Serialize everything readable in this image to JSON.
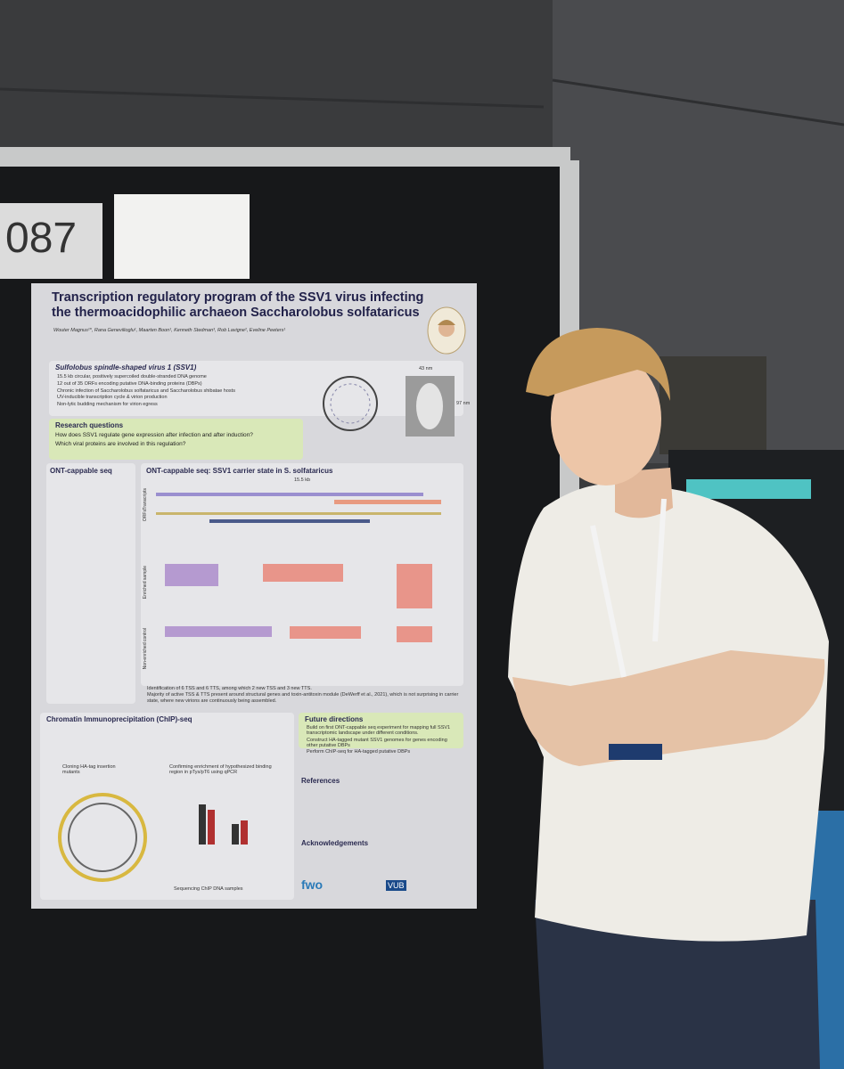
{
  "board_number": "087",
  "poster": {
    "title_line1": "Transcription regulatory program of the SSV1 virus infecting",
    "title_line2": "the thermoacidophilic archaeon Saccharolobus solfataricus",
    "authors": "Wouter Magnus¹*, Rana Genevilioglu¹, Maarten Boon¹, Kenneth Stedman³, Rob Lavigne², Eveline Peeters¹",
    "ssv1": {
      "heading": "Sulfolobus spindle-shaped virus 1 (SSV1)",
      "bullets": [
        "15.5 kb circular, positively supercoiled double-stranded DNA genome",
        "12 out of 35 ORFs encoding putative DNA-binding proteins (DBPs)",
        "Chronic infection of Saccharolobus solfataricus and Saccharolobus shibatae hosts",
        "UV-inducible transcription cycle & virion production",
        "Non-lytic budding mechanism for virion egress"
      ],
      "width_label": "43 nm",
      "height_label": "97 nm"
    },
    "research_questions": {
      "heading": "Research questions",
      "items": [
        "How does SSV1 regulate gene expression after infection and after induction?",
        "Which viral proteins are involved in this regulation?"
      ]
    },
    "ont": {
      "left_heading": "ONT-cappable seq",
      "right_heading": "ONT-cappable seq: SSV1 carrier state in S. solfataricus",
      "genome_label": "15.5 kb",
      "track_labels": [
        "Transcripts",
        "ORFs",
        "Enriched sample",
        "Non-enriched control"
      ],
      "findings": [
        "Identification of 6 TSS and 6 TTS, among which 2 new TSS and 3 new TTS.",
        "Majority of active TSS & TTS present around structural genes and toxin-antitoxin module (DeWerff et al., 2021), which is not surprising in carrier state, where new virions are continuously being assembled."
      ]
    },
    "chip": {
      "heading": "Chromatin Immunoprecipitation (ChIP)-seq",
      "steps": [
        "Cloning HA-tag insertion mutants",
        "Confirming enrichment of hypothesized binding region in pTys/pT6 using qPCR",
        "Sequencing ChIP DNA samples"
      ]
    },
    "future": {
      "heading": "Future directions",
      "items": [
        "Build on first ONT-cappable seq experiment for mapping full SSV1 transcriptomic landscape under different conditions.",
        "Construct HA-tagged mutant SSV1 genomes for genes encoding other putative DBPs",
        "Perform ChIP-seq for HA-tagged putative DBPs"
      ]
    },
    "references_heading": "References",
    "acknowledgements_heading": "Acknowledgements",
    "logos": [
      "fwo",
      "VUB"
    ]
  }
}
